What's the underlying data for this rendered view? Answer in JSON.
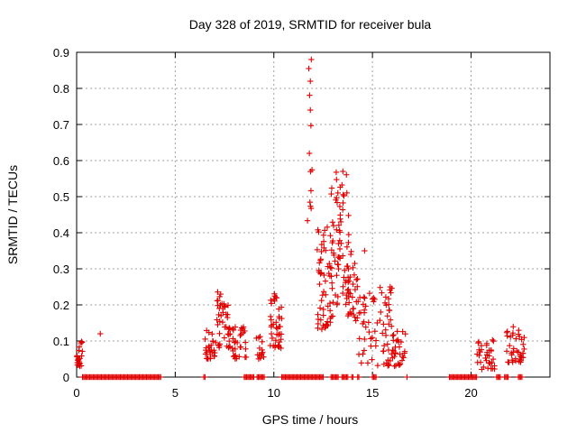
{
  "chart_data": {
    "type": "scatter",
    "title": "Day 328 of 2019, SRMTID for receiver bula",
    "xlabel": "GPS time / hours",
    "ylabel": "SRMTID / TECUs",
    "xlim": [
      0,
      24
    ],
    "ylim": [
      0,
      0.9
    ],
    "xticks": [
      0,
      5,
      10,
      15,
      20
    ],
    "xtick_labels": [
      "0",
      "5",
      "10",
      "15",
      "20"
    ],
    "yticks": [
      0,
      0.1,
      0.2,
      0.3,
      0.4,
      0.5,
      0.6,
      0.7,
      0.8,
      0.9
    ],
    "ytick_labels": [
      "0",
      "0.1",
      "0.2",
      "0.3",
      "0.4",
      "0.5",
      "0.6",
      "0.7",
      "0.8",
      "0.9"
    ],
    "grid": true,
    "marker": "+",
    "color": "#e00000",
    "series": [
      {
        "name": "SRMTID",
        "clusters": [
          {
            "x_range": [
              0.0,
              0.3
            ],
            "y_range": [
              0.03,
              0.1
            ],
            "count": 22
          },
          {
            "x_range": [
              6.5,
              7.1
            ],
            "y_range": [
              0.05,
              0.13
            ],
            "count": 28
          },
          {
            "x_range": [
              7.1,
              7.7
            ],
            "y_range": [
              0.08,
              0.24
            ],
            "count": 34
          },
          {
            "x_range": [
              7.7,
              8.6
            ],
            "y_range": [
              0.05,
              0.14
            ],
            "count": 40
          },
          {
            "x_range": [
              9.1,
              9.5
            ],
            "y_range": [
              0.05,
              0.13
            ],
            "count": 14
          },
          {
            "x_range": [
              9.8,
              10.4
            ],
            "y_range": [
              0.08,
              0.24
            ],
            "count": 40
          },
          {
            "x_range": [
              11.7,
              12.0
            ],
            "y_range": [
              0.42,
              0.88
            ],
            "count": 10
          },
          {
            "x_range": [
              12.2,
              13.0
            ],
            "y_range": [
              0.13,
              0.42
            ],
            "count": 55
          },
          {
            "x_range": [
              12.9,
              13.8
            ],
            "y_range": [
              0.2,
              0.57
            ],
            "count": 70
          },
          {
            "x_range": [
              13.7,
              14.3
            ],
            "y_range": [
              0.15,
              0.35
            ],
            "count": 30
          },
          {
            "x_range": [
              14.3,
              16.0
            ],
            "y_range": [
              0.03,
              0.25
            ],
            "count": 70
          },
          {
            "x_range": [
              16.0,
              16.7
            ],
            "y_range": [
              0.03,
              0.14
            ],
            "count": 30
          },
          {
            "x_range": [
              20.3,
              21.2
            ],
            "y_range": [
              0.02,
              0.11
            ],
            "count": 34
          },
          {
            "x_range": [
              21.8,
              22.7
            ],
            "y_range": [
              0.04,
              0.14
            ],
            "count": 40
          }
        ],
        "points": [
          {
            "x": 1.2,
            "y": 0.12
          },
          {
            "x": 12.25,
            "y": 0.16
          },
          {
            "x": 11.85,
            "y": 0.82
          },
          {
            "x": 11.9,
            "y": 0.88
          },
          {
            "x": 11.85,
            "y": 0.74
          },
          {
            "x": 11.8,
            "y": 0.62
          },
          {
            "x": 13.5,
            "y": 0.57
          },
          {
            "x": 14.6,
            "y": 0.35
          },
          {
            "x": 15.9,
            "y": 0.25
          }
        ],
        "zero_segments": [
          [
            0.3,
            4.3
          ],
          [
            6.45,
            6.55
          ],
          [
            8.5,
            9.0
          ],
          [
            9.15,
            9.55
          ],
          [
            10.4,
            12.5
          ],
          [
            12.9,
            13.3
          ],
          [
            13.45,
            13.75
          ],
          [
            13.95,
            14.05
          ],
          [
            14.25,
            14.35
          ],
          [
            15.0,
            15.2
          ],
          [
            16.75,
            16.8
          ],
          [
            18.9,
            20.3
          ],
          [
            21.3,
            21.5
          ],
          [
            21.7,
            21.9
          ],
          [
            22.4,
            22.6
          ]
        ],
        "zero_y": 0
      }
    ]
  }
}
